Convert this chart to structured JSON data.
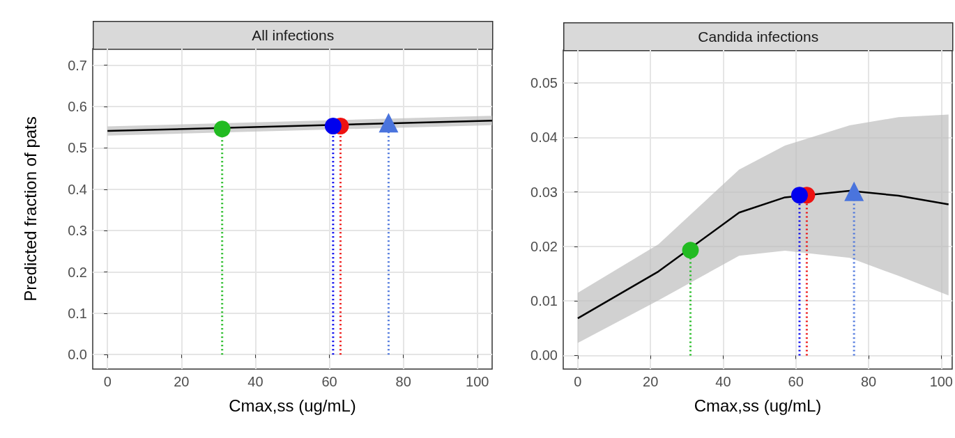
{
  "chart_data": [
    {
      "type": "line",
      "title": "All infections",
      "xlabel": "Cmax,ss (ug/mL)",
      "ylabel": "Predicted fraction of pats",
      "xlim": [
        -4,
        104
      ],
      "xticks": [
        0,
        20,
        40,
        60,
        80,
        100
      ],
      "ylim": [
        -0.035,
        0.74
      ],
      "yticks": [
        {
          "value": 0,
          "label": "0.0"
        },
        {
          "value": 0.1,
          "label": "0.1"
        },
        {
          "value": 0.2,
          "label": "0.2"
        },
        {
          "value": 0.3,
          "label": "0.3"
        },
        {
          "value": 0.4,
          "label": "0.4"
        },
        {
          "value": 0.5,
          "label": "0.5"
        },
        {
          "value": 0.6,
          "label": "0.6"
        },
        {
          "value": 0.7,
          "label": "0.7"
        }
      ],
      "grid": true,
      "series": [
        {
          "color": "#000000",
          "x": [
            0,
            104
          ],
          "values": [
            0.541,
            0.566
          ],
          "lower": [
            0.53,
            0.555
          ],
          "upper": [
            0.552,
            0.578
          ],
          "marker": "none",
          "line_style": "solid"
        },
        {
          "type": "lollipop",
          "color": "#22bb22",
          "x": [
            31
          ],
          "values": [
            0.546
          ],
          "marker": "circle",
          "line_style": "dotted"
        },
        {
          "type": "lollipop",
          "color": "#ee1111",
          "x": [
            63
          ],
          "values": [
            0.553
          ],
          "marker": "circle",
          "line_style": "dotted"
        },
        {
          "type": "lollipop",
          "color": "#0000ee",
          "x": [
            61
          ],
          "values": [
            0.553
          ],
          "marker": "circle",
          "line_style": "dotted"
        },
        {
          "type": "lollipop",
          "color": "#4a74dd",
          "x": [
            76
          ],
          "values": [
            0.561
          ],
          "marker": "triangle",
          "line_style": "dotted"
        }
      ]
    },
    {
      "type": "line",
      "title": "Candida infections",
      "xlabel": "Cmax,ss (ug/mL)",
      "xlim": [
        -4,
        103
      ],
      "xticks": [
        0,
        20,
        40,
        60,
        80,
        100
      ],
      "ylim": [
        -0.0025,
        0.056
      ],
      "yticks": [
        {
          "value": 0,
          "label": "0.00"
        },
        {
          "value": 0.01,
          "label": "0.01"
        },
        {
          "value": 0.02,
          "label": "0.02"
        },
        {
          "value": 0.03,
          "label": "0.03"
        },
        {
          "value": 0.04,
          "label": "0.04"
        },
        {
          "value": 0.05,
          "label": "0.05"
        }
      ],
      "grid": true,
      "series": [
        {
          "color": "#000000",
          "x": [
            0,
            22.2,
            44.4,
            57,
            74.8,
            88.2,
            102
          ],
          "values": [
            0.0068,
            0.0154,
            0.0262,
            0.029,
            0.0302,
            0.0293,
            0.0277
          ],
          "lower": [
            0.0023,
            0.0101,
            0.0183,
            0.0192,
            0.0179,
            0.0146,
            0.011
          ],
          "upper": [
            0.0115,
            0.0204,
            0.0341,
            0.0385,
            0.0422,
            0.0437,
            0.0442
          ],
          "marker": "none",
          "line_style": "solid"
        },
        {
          "type": "lollipop",
          "color": "#22bb22",
          "x": [
            31
          ],
          "values": [
            0.0193
          ],
          "marker": "circle",
          "line_style": "dotted"
        },
        {
          "type": "lollipop",
          "color": "#ee1111",
          "x": [
            63
          ],
          "values": [
            0.0294
          ],
          "marker": "circle",
          "line_style": "dotted"
        },
        {
          "type": "lollipop",
          "color": "#0000ee",
          "x": [
            61
          ],
          "values": [
            0.0294
          ],
          "marker": "circle",
          "line_style": "dotted"
        },
        {
          "type": "lollipop",
          "color": "#4a74dd",
          "x": [
            76
          ],
          "values": [
            0.0301
          ],
          "marker": "triangle",
          "line_style": "dotted"
        }
      ]
    }
  ]
}
